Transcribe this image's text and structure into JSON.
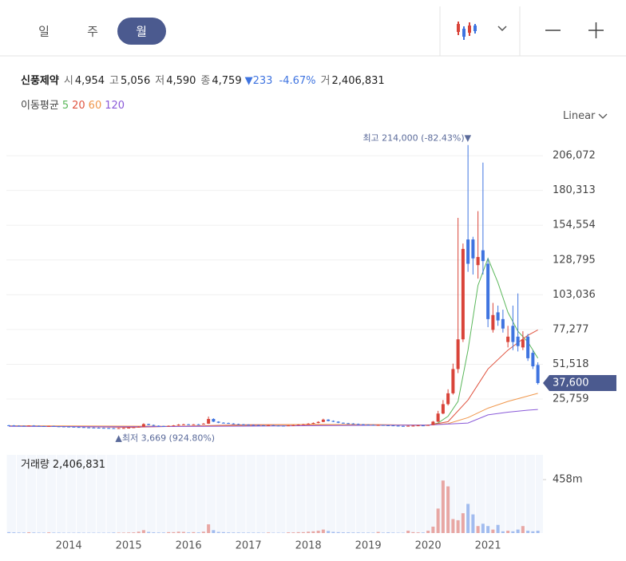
{
  "tabs": [
    "일",
    "주",
    "월"
  ],
  "selected_tab": 2,
  "quote": {
    "name": "신풍제약",
    "fields": [
      {
        "label": "시",
        "value": "4,954"
      },
      {
        "label": "고",
        "value": "5,056"
      },
      {
        "label": "저",
        "value": "4,590"
      },
      {
        "label": "종",
        "value": "4,759"
      }
    ],
    "change": "▼233",
    "change_pct": "-4.67%",
    "volume_label": "거",
    "volume": "2,406,831"
  },
  "ma_legend_title": "이동평균",
  "scale_mode": "Linear",
  "chart_data": {
    "type": "candlestick",
    "categories": [
      null,
      null,
      null,
      null,
      null,
      null,
      null,
      null,
      null,
      null,
      null,
      null,
      "2014",
      null,
      null,
      null,
      null,
      null,
      null,
      null,
      null,
      null,
      null,
      null,
      "2015",
      null,
      null,
      null,
      null,
      null,
      null,
      null,
      null,
      null,
      null,
      null,
      "2016",
      null,
      null,
      null,
      null,
      null,
      null,
      null,
      null,
      null,
      null,
      null,
      "2017",
      null,
      null,
      null,
      null,
      null,
      null,
      null,
      null,
      null,
      null,
      null,
      "2018",
      null,
      null,
      null,
      null,
      null,
      null,
      null,
      null,
      null,
      null,
      null,
      "2019",
      null,
      null,
      null,
      null,
      null,
      null,
      null,
      null,
      null,
      null,
      null,
      "2020",
      null,
      null,
      null,
      null,
      null,
      null,
      null,
      null,
      null,
      null,
      null,
      "2021",
      null,
      null,
      null,
      null,
      null,
      null,
      null,
      null,
      null,
      null
    ],
    "open": [
      6300,
      6200,
      6000,
      5900,
      5800,
      6100,
      5900,
      5700,
      5600,
      5800,
      5500,
      5400,
      5300,
      5200,
      5000,
      4900,
      4700,
      4600,
      4500,
      4400,
      4300,
      4200,
      4000,
      4200,
      4300,
      4500,
      4800,
      5200,
      7200,
      6500,
      6000,
      5800,
      5500,
      5900,
      6200,
      6800,
      7000,
      6800,
      7000,
      6900,
      7500,
      11000,
      9000,
      8200,
      8000,
      7600,
      7200,
      7000,
      6800,
      6600,
      6500,
      6300,
      6200,
      6400,
      6100,
      6000,
      5900,
      6200,
      6400,
      6800,
      7000,
      7500,
      8000,
      8800,
      10500,
      9500,
      9000,
      8200,
      7800,
      7600,
      7300,
      7000,
      6800,
      6600,
      6400,
      6500,
      6300,
      6200,
      6000,
      5800,
      5700,
      5900,
      6000,
      6200,
      6100,
      6500,
      9000,
      15000,
      22000,
      30000,
      48000,
      70000,
      144000,
      144000,
      125000,
      136000,
      126000,
      77000,
      90000,
      85000,
      68000,
      80000,
      72000,
      64000,
      72000,
      60000,
      51000
    ],
    "high": [
      6600,
      6500,
      6300,
      6200,
      6300,
      6400,
      6100,
      5900,
      6000,
      6000,
      5700,
      5600,
      5500,
      5400,
      5200,
      5100,
      4900,
      4800,
      4700,
      4600,
      4500,
      4400,
      4400,
      4500,
      4700,
      5000,
      5500,
      7800,
      7500,
      6800,
      6200,
      6000,
      6200,
      6500,
      7200,
      7400,
      7300,
      7200,
      7300,
      7900,
      12800,
      11500,
      9300,
      8600,
      8300,
      7900,
      7500,
      7300,
      7000,
      6900,
      6700,
      6500,
      6700,
      6600,
      6300,
      6200,
      6400,
      6700,
      7100,
      7400,
      7900,
      8400,
      9300,
      11200,
      10800,
      9900,
      9300,
      8400,
      8100,
      7900,
      7600,
      7300,
      7000,
      6900,
      6800,
      6700,
      6500,
      6400,
      6200,
      6000,
      6100,
      6300,
      6500,
      6400,
      6800,
      9500,
      17000,
      25000,
      33000,
      52000,
      160000,
      141000,
      214000,
      146000,
      165000,
      201000,
      130000,
      97000,
      95000,
      92000,
      80000,
      95000,
      104000,
      76000,
      74000,
      62000,
      53000
    ],
    "low": [
      5900,
      5800,
      5700,
      5600,
      5700,
      5700,
      5500,
      5400,
      5400,
      5300,
      5200,
      5100,
      5000,
      4800,
      4700,
      4500,
      4400,
      4300,
      4200,
      4100,
      4000,
      3669,
      3900,
      4100,
      4200,
      4400,
      4700,
      5000,
      6300,
      5800,
      5500,
      5300,
      5400,
      5800,
      6100,
      6700,
      6600,
      6600,
      6700,
      6800,
      7300,
      8700,
      7900,
      7800,
      7400,
      7000,
      6800,
      6600,
      6400,
      6300,
      6100,
      6000,
      6100,
      5900,
      5800,
      5700,
      5800,
      6100,
      6300,
      6700,
      6800,
      7300,
      7800,
      8600,
      9200,
      8700,
      7900,
      7600,
      7400,
      7100,
      6800,
      6600,
      6400,
      6200,
      6200,
      6100,
      6000,
      5800,
      5600,
      5500,
      5600,
      5800,
      5900,
      5900,
      6000,
      6400,
      8700,
      14500,
      21000,
      29000,
      45000,
      68000,
      120000,
      118000,
      115000,
      118000,
      79000,
      75000,
      80000,
      75000,
      64000,
      62000,
      61000,
      62000,
      54000,
      48000,
      36500
    ],
    "close": [
      6200,
      6000,
      5900,
      5800,
      6100,
      5900,
      5700,
      5600,
      5800,
      5500,
      5400,
      5300,
      5200,
      5000,
      4900,
      4700,
      4600,
      4500,
      4400,
      4300,
      4200,
      4000,
      4200,
      4300,
      4500,
      4800,
      5200,
      7200,
      6500,
      6000,
      5800,
      5500,
      5900,
      6200,
      6800,
      7000,
      6800,
      7000,
      6900,
      7500,
      11000,
      9000,
      8200,
      8000,
      7600,
      7200,
      7000,
      6800,
      6600,
      6500,
      6300,
      6200,
      6400,
      6100,
      6000,
      5900,
      6200,
      6400,
      6800,
      7000,
      7500,
      8000,
      8800,
      10500,
      9500,
      9000,
      8200,
      7800,
      7600,
      7300,
      7000,
      6800,
      6600,
      6400,
      6500,
      6300,
      6200,
      6000,
      5800,
      5700,
      5900,
      6000,
      6200,
      6100,
      6500,
      9000,
      15000,
      22000,
      30000,
      48000,
      70000,
      137000,
      126000,
      130000,
      131000,
      128000,
      85000,
      88000,
      84000,
      78000,
      72000,
      68000,
      65000,
      70000,
      56000,
      50000,
      37600
    ],
    "up_color": "#d9443a",
    "down_color": "#3f74e0",
    "ylim": [
      -9700,
      229800
    ],
    "yticks": [
      {
        "value": 25759,
        "label": "25,759"
      },
      {
        "value": 51518,
        "label": "51,518"
      },
      {
        "value": 77277,
        "label": "77,277"
      },
      {
        "value": 103036,
        "label": "103,036"
      },
      {
        "value": 128795,
        "label": "128,795"
      },
      {
        "value": 154554,
        "label": "154,554"
      },
      {
        "value": 180313,
        "label": "180,313"
      },
      {
        "value": 206072,
        "label": "206,072"
      }
    ],
    "grid": true,
    "last_label": "37,600",
    "high_annotation": "최고 214,000 (-82.43%)▼",
    "low_annotation": "▲최저 3,669 (924.80%)",
    "moving_averages": [
      {
        "name": "5",
        "color": "#5cb85c",
        "x": [
          84,
          86,
          88,
          90,
          92,
          94,
          96,
          98,
          100,
          102,
          104,
          106
        ],
        "values": [
          6300,
          8000,
          13000,
          24000,
          62000,
          110000,
          130000,
          112000,
          90000,
          76000,
          68000,
          56000
        ]
      },
      {
        "name": "20",
        "color": "#e0533f",
        "x": [
          0,
          24,
          48,
          72,
          84,
          88,
          92,
          96,
          100,
          104,
          106
        ],
        "values": [
          6000,
          4800,
          6700,
          6800,
          6300,
          9000,
          25000,
          48000,
          62000,
          73000,
          77000
        ]
      },
      {
        "name": "60",
        "color": "#f0964a",
        "x": [
          0,
          36,
          60,
          84,
          88,
          92,
          96,
          100,
          104,
          106
        ],
        "values": [
          6000,
          5500,
          7000,
          6500,
          7500,
          12000,
          19000,
          24000,
          28000,
          30000
        ]
      },
      {
        "name": "120",
        "color": "#8a5ad8",
        "x": [
          0,
          24,
          48,
          72,
          84,
          92,
          96,
          100,
          104,
          106
        ],
        "values": [
          5500,
          5200,
          5700,
          6300,
          6500,
          8000,
          14000,
          16000,
          17500,
          18000
        ]
      }
    ],
    "volume": {
      "title": "거래량",
      "title_value": "2,406,831",
      "ylim": [
        0,
        670
      ],
      "yticks": [
        {
          "value": 458,
          "label": "458m"
        }
      ],
      "values": [
        8,
        6,
        5,
        5,
        7,
        5,
        4,
        4,
        6,
        4,
        4,
        3,
        3,
        3,
        4,
        3,
        3,
        3,
        3,
        3,
        3,
        5,
        4,
        4,
        5,
        6,
        12,
        25,
        10,
        6,
        5,
        5,
        8,
        8,
        12,
        10,
        6,
        8,
        6,
        12,
        75,
        25,
        10,
        8,
        6,
        5,
        5,
        4,
        4,
        4,
        4,
        3,
        5,
        3,
        3,
        3,
        6,
        6,
        8,
        8,
        12,
        15,
        20,
        30,
        18,
        10,
        8,
        6,
        6,
        5,
        5,
        4,
        4,
        4,
        10,
        4,
        6,
        4,
        3,
        3,
        20,
        8,
        6,
        5,
        20,
        55,
        210,
        450,
        400,
        120,
        110,
        170,
        250,
        160,
        60,
        80,
        60,
        30,
        70,
        15,
        20,
        15,
        30,
        60,
        20,
        15,
        20
      ]
    }
  }
}
